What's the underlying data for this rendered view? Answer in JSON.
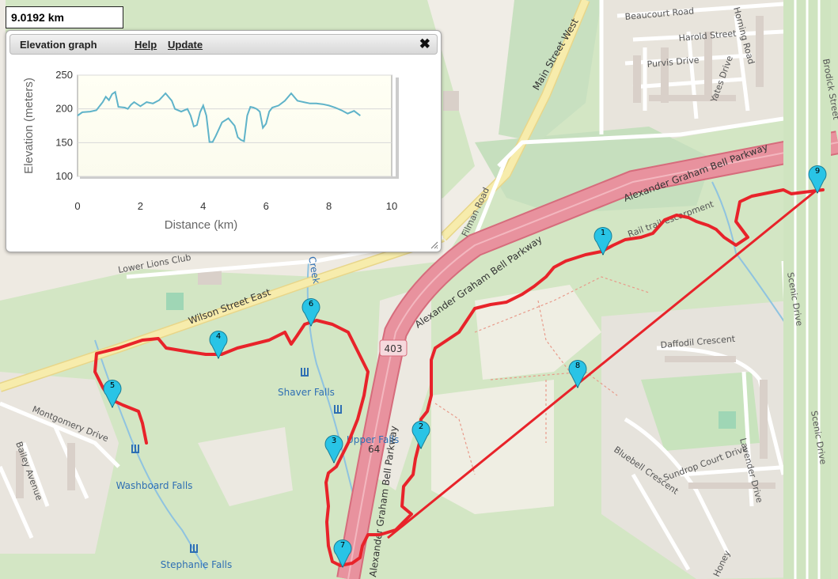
{
  "distance_readout": "9.0192 km",
  "elevation_panel": {
    "title": "Elevation graph",
    "help_label": "Help",
    "update_label": "Update",
    "close_symbol": "✖"
  },
  "chart_data": {
    "type": "line",
    "xlabel": "Distance (km)",
    "ylabel": "Elevation (meters)",
    "xlim": [
      0,
      10
    ],
    "ylim": [
      100,
      250
    ],
    "xticks": [
      0,
      2,
      4,
      6,
      8,
      10
    ],
    "yticks": [
      100,
      150,
      200,
      250
    ],
    "grid": true,
    "line_color": "#5fb3c9",
    "series": [
      {
        "x": [
          0,
          0.15,
          0.4,
          0.6,
          0.8,
          0.9,
          1.0,
          1.1,
          1.2,
          1.3,
          1.5,
          1.6,
          1.7,
          1.8,
          2.0,
          2.2,
          2.4,
          2.6,
          2.8,
          3.0,
          3.1,
          3.3,
          3.5,
          3.6,
          3.7,
          3.8,
          3.9,
          4.0,
          4.1,
          4.2,
          4.3,
          4.4,
          4.6,
          4.8,
          5.0,
          5.1,
          5.2,
          5.3,
          5.4,
          5.5,
          5.6,
          5.7,
          5.8,
          5.9,
          6.0,
          6.1,
          6.2,
          6.4,
          6.6,
          6.8,
          7.0,
          7.2,
          7.4,
          7.6,
          7.8,
          8.0,
          8.2,
          8.4,
          8.6,
          8.8,
          9.0
        ],
        "y": [
          190,
          195,
          196,
          198,
          210,
          218,
          213,
          222,
          225,
          203,
          202,
          200,
          206,
          210,
          204,
          210,
          208,
          213,
          223,
          212,
          200,
          196,
          200,
          190,
          174,
          176,
          195,
          205,
          190,
          151,
          151,
          160,
          180,
          186,
          175,
          158,
          154,
          152,
          190,
          203,
          202,
          200,
          196,
          172,
          178,
          196,
          202,
          205,
          212,
          223,
          212,
          210,
          208,
          208,
          207,
          205,
          202,
          198,
          193,
          197,
          190
        ]
      }
    ]
  },
  "map": {
    "roads": {
      "main_street_west": "Main Street West",
      "alexander_graham_bell_parkway": "Alexander Graham Bell Parkway",
      "wilson_street_east": "Wilson Street East",
      "lower_lions_club": "Lower Lions Club",
      "filman_road": "Filman Road",
      "beaucourt_road": "Beaucourt Road",
      "harold_street": "Harold Street",
      "purvis_drive": "Purvis Drive",
      "yates_drive": "Yates Drive",
      "horning_road": "Horning Road",
      "brodick_street": "Brodick Street",
      "scenic_drive": "Scenic Drive",
      "daffodil_crescent": "Daffodil Crescent",
      "bluebell_crescent": "Bluebell Crescent",
      "sundrop_court_drive": "Sundrop Court Drive",
      "lavender_drive": "Lavender Drive",
      "montgomery_drive": "Montgomery Drive",
      "bailey_avenue": "Bailey Avenue",
      "rail_trail": "Rail trail escarpment",
      "highway_shield": "403",
      "route_64": "64",
      "honey": "Honey"
    },
    "water": {
      "shaver_falls": "Shaver Falls",
      "upper_falls": "Upper Falls",
      "washboard_falls": "Washboard Falls",
      "stephanie_falls": "Stephanie Falls",
      "creek": "Creek"
    },
    "markers": [
      "1",
      "2",
      "3",
      "4",
      "5",
      "6",
      "7",
      "8",
      "9"
    ],
    "route_color": "#e8232a",
    "marker_color": "#29c4e6"
  }
}
